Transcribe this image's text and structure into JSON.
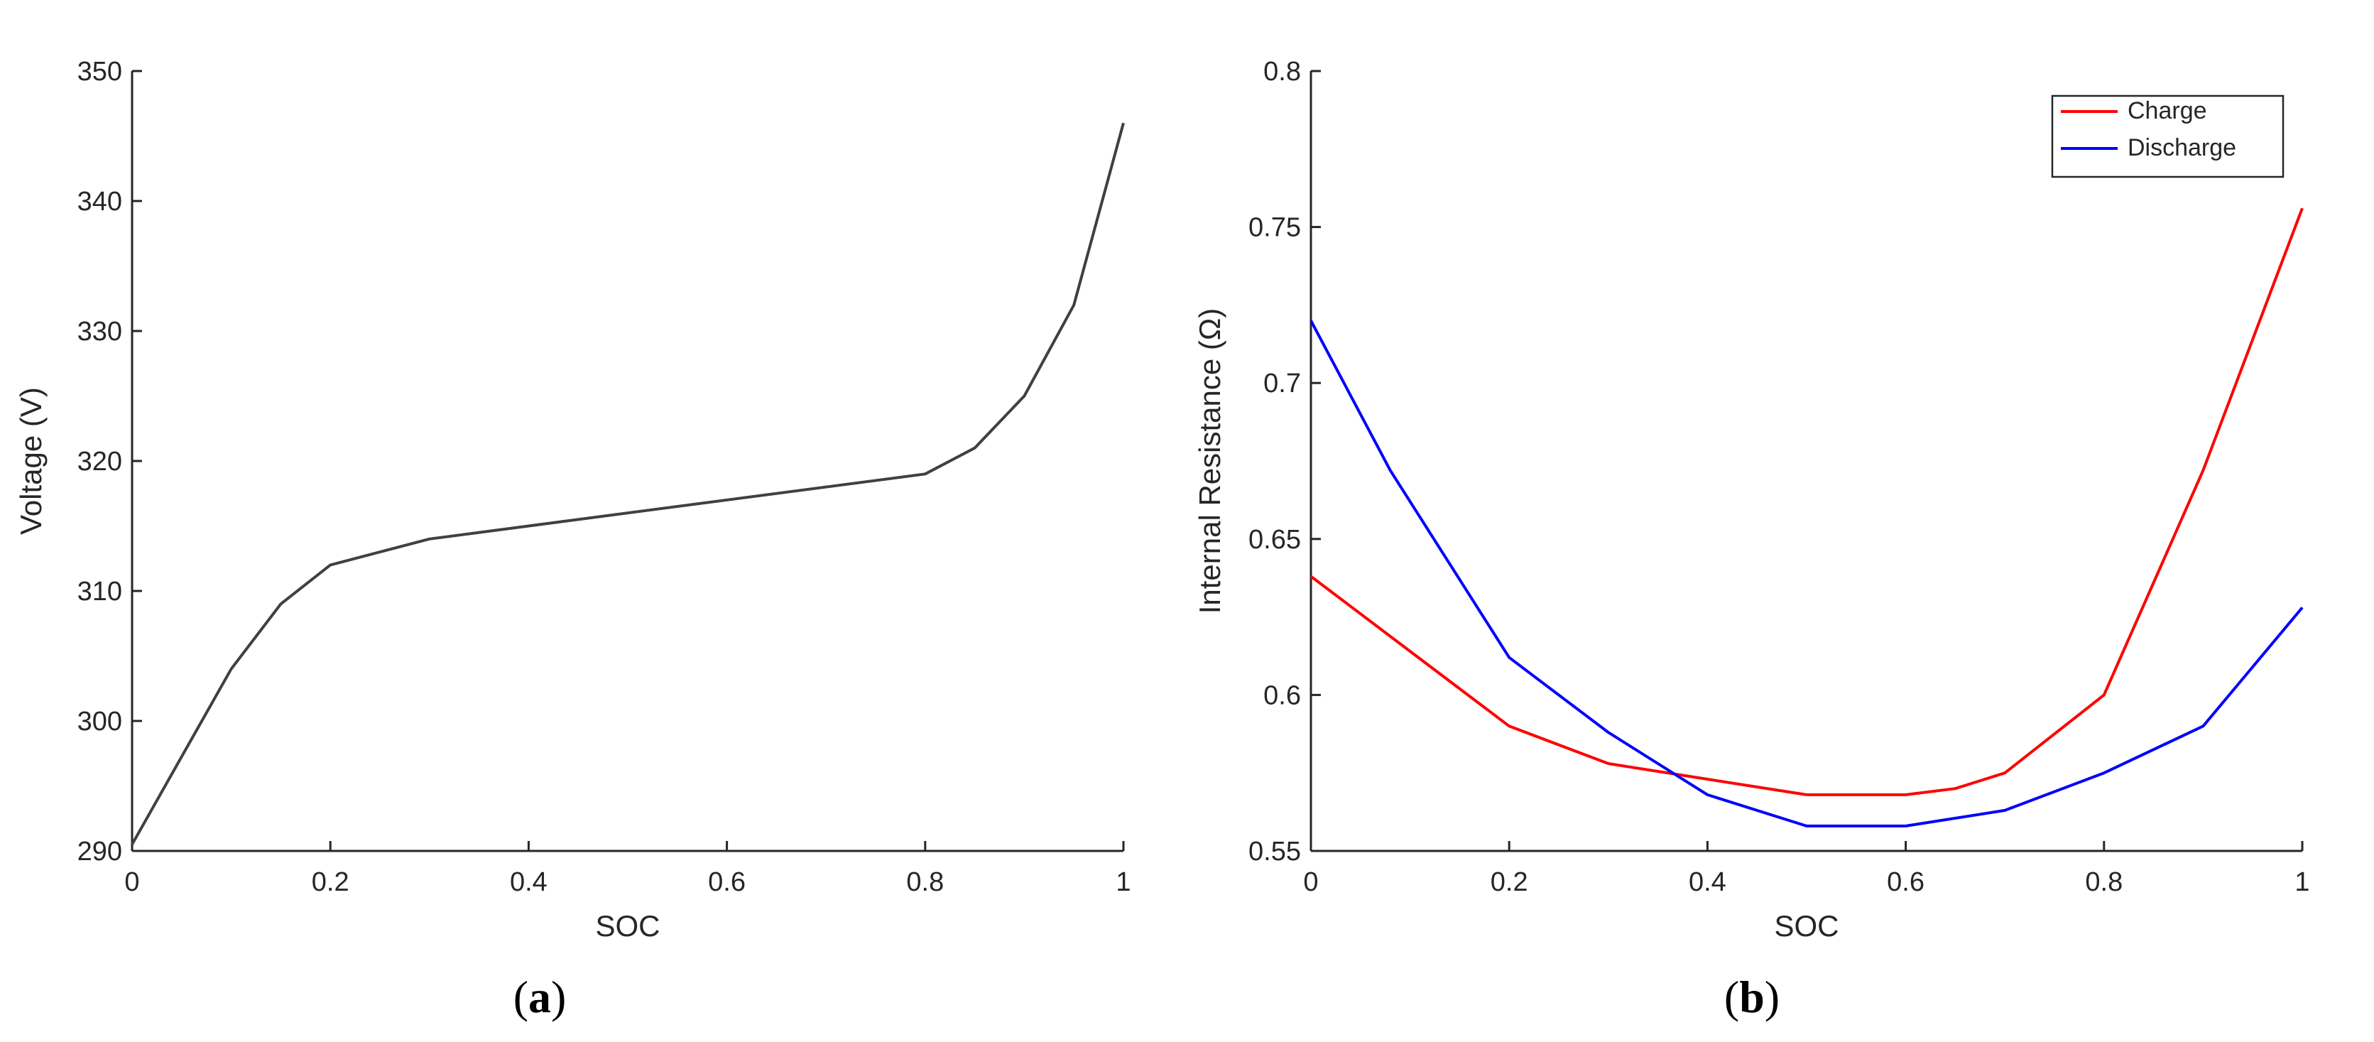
{
  "colors": {
    "axis": "#262626",
    "charge": "#ff0000",
    "discharge": "#0000ff",
    "voltage": "#404040"
  },
  "chart_data": [
    {
      "id": "a",
      "type": "line",
      "panel_label_open": "(",
      "panel_label_letter": "a",
      "panel_label_close": ")",
      "title": "",
      "xlabel": "SOC",
      "ylabel": "Voltage (V)",
      "xlim": [
        0,
        1
      ],
      "ylim": [
        290,
        350
      ],
      "xticks": [
        0,
        0.2,
        0.4,
        0.6,
        0.8,
        1
      ],
      "xtick_labels": [
        "0",
        "0.2",
        "0.4",
        "0.6",
        "0.8",
        "1"
      ],
      "yticks": [
        290,
        300,
        310,
        320,
        330,
        340,
        350
      ],
      "ytick_labels": [
        "290",
        "300",
        "310",
        "320",
        "330",
        "340",
        "350"
      ],
      "grid": false,
      "series": [
        {
          "color": "#404040",
          "x": [
            0,
            0.1,
            0.15,
            0.2,
            0.3,
            0.8,
            0.85,
            0.9,
            0.95,
            1.0
          ],
          "y": [
            290.5,
            304,
            309,
            312,
            314,
            319,
            321,
            325,
            332,
            346
          ]
        }
      ]
    },
    {
      "id": "b",
      "type": "line",
      "panel_label_open": "(",
      "panel_label_letter": "b",
      "panel_label_close": ")",
      "title": "",
      "xlabel": "SOC",
      "ylabel": "Internal Resistance (Ω)",
      "xlim": [
        0,
        1
      ],
      "ylim": [
        0.55,
        0.8
      ],
      "xticks": [
        0,
        0.2,
        0.4,
        0.6,
        0.8,
        1
      ],
      "xtick_labels": [
        "0",
        "0.2",
        "0.4",
        "0.6",
        "0.8",
        "1"
      ],
      "yticks": [
        0.55,
        0.6,
        0.65,
        0.7,
        0.75,
        0.8
      ],
      "ytick_labels": [
        "0.55",
        "0.6",
        "0.65",
        "0.7",
        "0.75",
        "0.8"
      ],
      "grid": false,
      "legend_position": "top-right",
      "series": [
        {
          "name": "Charge",
          "color": "#ff0000",
          "x": [
            0,
            0.2,
            0.3,
            0.4,
            0.5,
            0.6,
            0.65,
            0.7,
            0.8,
            0.9,
            1.0
          ],
          "y": [
            0.638,
            0.59,
            0.578,
            0.573,
            0.568,
            0.568,
            0.57,
            0.575,
            0.6,
            0.672,
            0.756
          ]
        },
        {
          "name": "Discharge",
          "color": "#0000ff",
          "x": [
            0,
            0.08,
            0.2,
            0.3,
            0.4,
            0.5,
            0.6,
            0.7,
            0.8,
            0.9,
            1.0
          ],
          "y": [
            0.72,
            0.672,
            0.612,
            0.588,
            0.568,
            0.558,
            0.558,
            0.563,
            0.575,
            0.59,
            0.628
          ]
        }
      ]
    }
  ]
}
